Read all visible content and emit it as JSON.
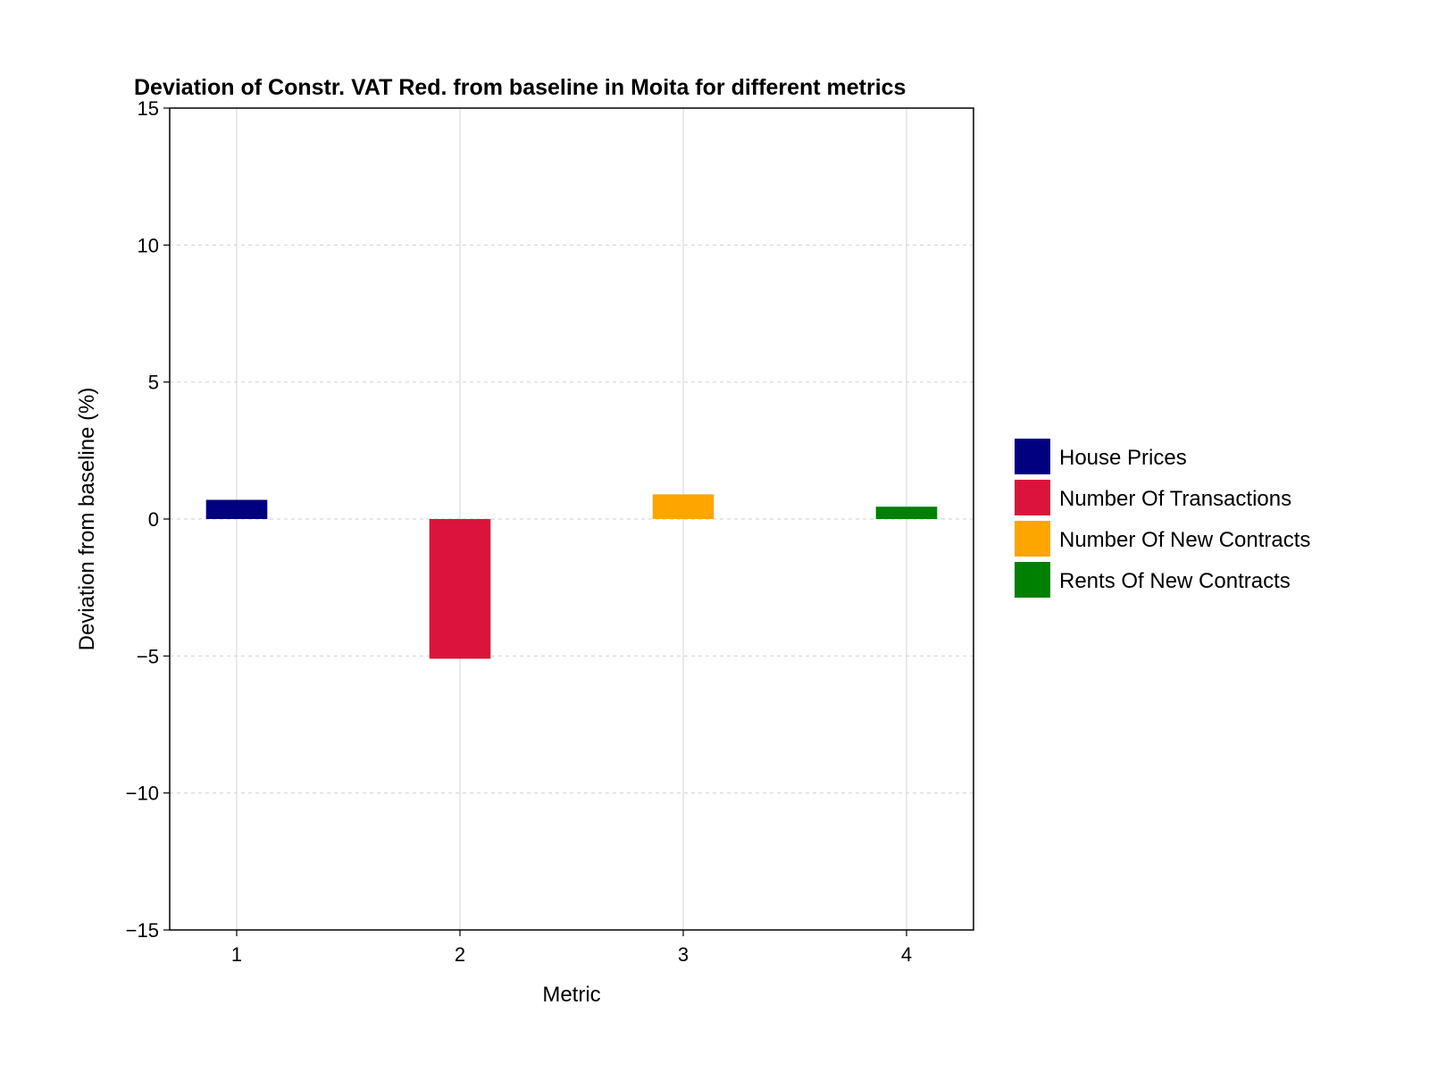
{
  "chart_data": {
    "type": "bar",
    "title": "Deviation of Constr. VAT Red. from baseline in Moita for different metrics",
    "xlabel": "Metric",
    "ylabel": "Deviation from baseline (%)",
    "categories": [
      "1",
      "2",
      "3",
      "4"
    ],
    "x": [
      1,
      2,
      3,
      4
    ],
    "series": [
      {
        "name": "House Prices",
        "x": 1,
        "value": 0.7,
        "color": "#000080"
      },
      {
        "name": "Number Of Transactions",
        "x": 2,
        "value": -5.1,
        "color": "#dc143c"
      },
      {
        "name": "Number Of New Contracts",
        "x": 3,
        "value": 0.9,
        "color": "#ffa500"
      },
      {
        "name": "Rents Of New Contracts",
        "x": 4,
        "value": 0.45,
        "color": "#008000"
      }
    ],
    "ylim": [
      -15,
      15
    ],
    "yticks": [
      -15,
      -10,
      -5,
      0,
      5,
      10,
      15
    ],
    "ytick_labels": [
      "−15",
      "−10",
      "−5",
      "0",
      "5",
      "10",
      "15"
    ],
    "xlim": [
      0.7,
      4.3
    ],
    "xticks": [
      1,
      2,
      3,
      4
    ],
    "grid": true,
    "legend_position": "right"
  }
}
